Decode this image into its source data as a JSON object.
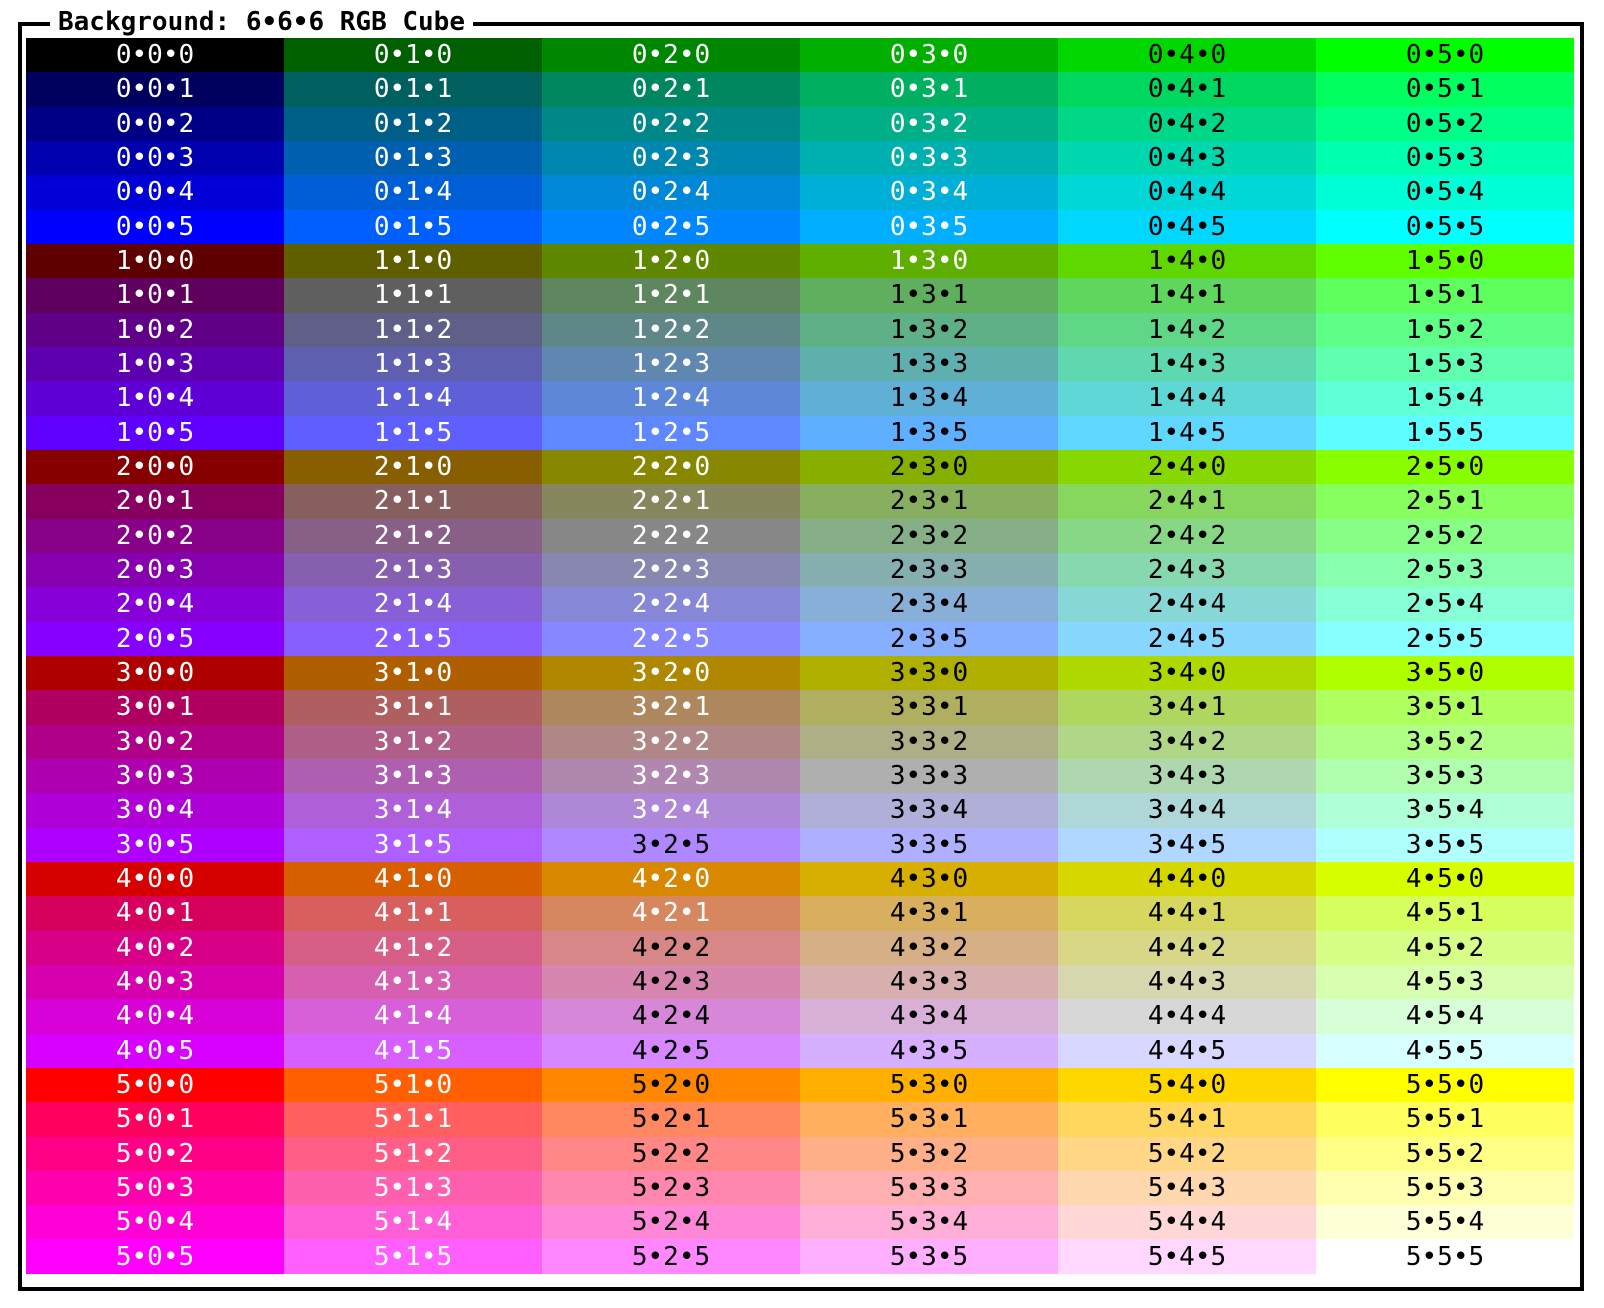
{
  "window": {
    "title": "Background: 6•6•6 RGB Cube"
  },
  "cube": {
    "levels": [
      0,
      1,
      2,
      3,
      4,
      5
    ],
    "separator": "•",
    "text_colors": {
      "light": "#ffffff",
      "dark": "#000000"
    },
    "channel_values": {
      "r": [
        0,
        95,
        135,
        175,
        215,
        255
      ],
      "g": [
        0,
        95,
        135,
        175,
        215,
        255
      ],
      "b": [
        0,
        95,
        135,
        175,
        215,
        255
      ]
    }
  }
}
